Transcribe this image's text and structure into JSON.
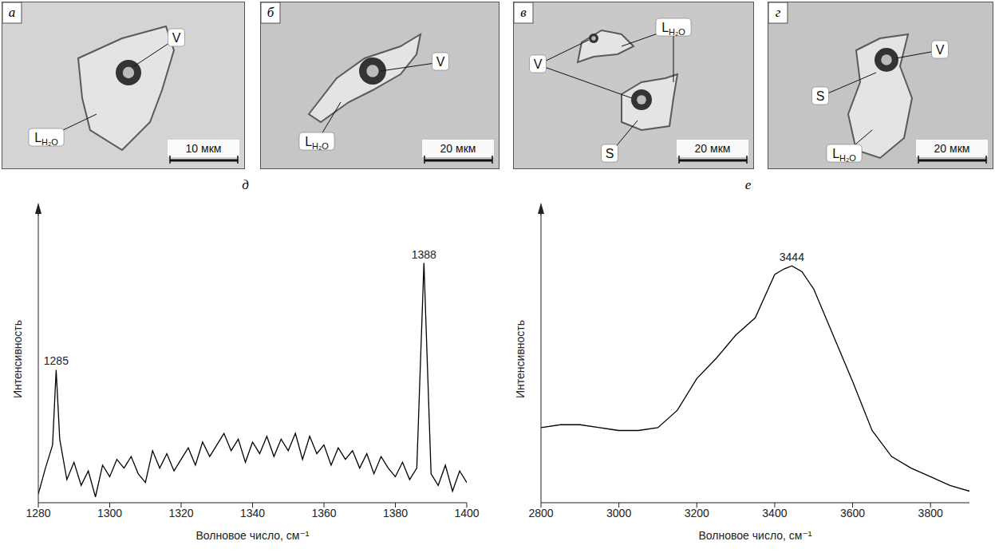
{
  "photos": [
    {
      "letter": "а",
      "labels": [
        {
          "text": "V"
        },
        {
          "text": "L",
          "sub": "H₂O"
        }
      ],
      "scale": "10 мкм"
    },
    {
      "letter": "б",
      "labels": [
        {
          "text": "V"
        },
        {
          "text": "L",
          "sub": "H₂O"
        }
      ],
      "scale": "20 мкм"
    },
    {
      "letter": "в",
      "labels": [
        {
          "text": "V"
        },
        {
          "text": "L",
          "sub": "H₂O"
        },
        {
          "text": "S"
        }
      ],
      "scale": "20 мкм"
    },
    {
      "letter": "г",
      "labels": [
        {
          "text": "V"
        },
        {
          "text": "S"
        },
        {
          "text": "L",
          "sub": "H₂O"
        }
      ],
      "scale": "20 мкм"
    }
  ],
  "chart_data": [
    {
      "type": "line",
      "title": "д",
      "x_label": "Волновое число, см⁻¹",
      "y_label": "Интенсивность",
      "x": [
        1280,
        1282,
        1284,
        1285,
        1286,
        1288,
        1290,
        1292,
        1294,
        1296,
        1298,
        1300,
        1302,
        1304,
        1306,
        1308,
        1310,
        1312,
        1314,
        1316,
        1318,
        1320,
        1322,
        1324,
        1326,
        1328,
        1330,
        1332,
        1334,
        1336,
        1338,
        1340,
        1342,
        1344,
        1346,
        1348,
        1350,
        1352,
        1354,
        1356,
        1358,
        1360,
        1362,
        1364,
        1366,
        1368,
        1370,
        1372,
        1374,
        1376,
        1378,
        1380,
        1382,
        1384,
        1386,
        1388,
        1390,
        1392,
        1394,
        1396,
        1398,
        1400
      ],
      "values": [
        3,
        12,
        20,
        46,
        22,
        8,
        14,
        6,
        11,
        2,
        13,
        9,
        15,
        12,
        16,
        10,
        7,
        18,
        12,
        17,
        11,
        15,
        19,
        13,
        21,
        16,
        20,
        24,
        18,
        22,
        14,
        21,
        17,
        23,
        16,
        22,
        18,
        24,
        15,
        23,
        17,
        20,
        13,
        19,
        15,
        18,
        12,
        17,
        10,
        16,
        12,
        9,
        14,
        8,
        12,
        83,
        10,
        6,
        13,
        4,
        11,
        7
      ],
      "annotations": [
        1285,
        1388
      ],
      "xlim": [
        1280,
        1400
      ],
      "xticks": [
        1280,
        1300,
        1320,
        1340,
        1360,
        1380,
        1400
      ],
      "ylim": [
        0,
        100
      ],
      "tick_labels": "x",
      "color": "#000000",
      "grid": false
    },
    {
      "type": "line",
      "title": "е",
      "x_label": "Волновое число, см⁻¹",
      "y_label": "Интенсивность",
      "x": [
        2800,
        2850,
        2900,
        2950,
        3000,
        3050,
        3100,
        3150,
        3200,
        3250,
        3300,
        3350,
        3400,
        3425,
        3444,
        3470,
        3500,
        3550,
        3600,
        3650,
        3700,
        3750,
        3800,
        3850,
        3900
      ],
      "values": [
        26,
        27,
        27,
        26,
        25,
        25,
        26,
        32,
        43,
        50,
        58,
        64,
        79,
        81,
        82,
        80,
        74,
        58,
        42,
        25,
        16,
        12,
        9,
        6,
        4
      ],
      "annotations": [
        3444
      ],
      "xlim": [
        2800,
        3900
      ],
      "xticks": [
        2800,
        3000,
        3200,
        3400,
        3600,
        3800
      ],
      "ylim": [
        0,
        100
      ],
      "tick_labels": "x",
      "color": "#000000",
      "grid": false
    }
  ]
}
